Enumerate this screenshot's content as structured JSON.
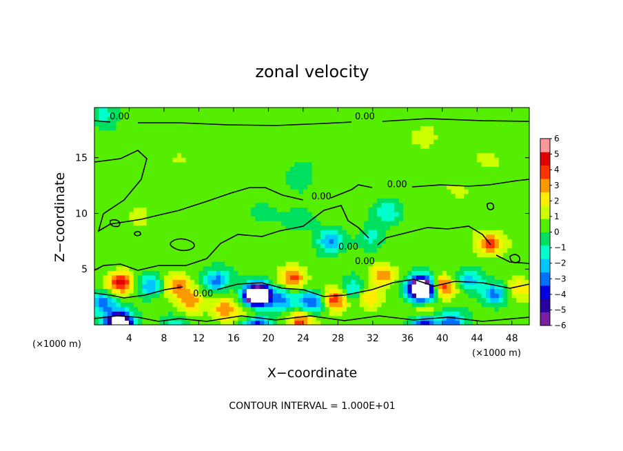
{
  "chart_data": {
    "type": "heatmap",
    "title": "zonal velocity",
    "xlabel": "X−coordinate",
    "ylabel": "Z−coordinate",
    "x_unit_left": "(×1000 m)",
    "x_unit_right": "(×1000 m)",
    "xlim": [
      0,
      50
    ],
    "ylim": [
      0,
      19.5
    ],
    "x_ticks": [
      "4",
      "8",
      "12",
      "16",
      "20",
      "24",
      "28",
      "32",
      "36",
      "40",
      "44",
      "48"
    ],
    "y_ticks": [
      "5",
      "10",
      "15"
    ],
    "colorbar": {
      "ticks": [
        "6",
        "5",
        "4",
        "3",
        "2",
        "1",
        "0",
        "−1",
        "−2",
        "−3",
        "−4",
        "−5",
        "−6"
      ],
      "range": [
        -6,
        6
      ],
      "colors": [
        "#7a1fa2",
        "#2a00a0",
        "#0000e0",
        "#0070ff",
        "#00c8ff",
        "#00ffcc",
        "#00e060",
        "#55ee00",
        "#ccff00",
        "#ffee00",
        "#ff9900",
        "#ff3300",
        "#e00000",
        "#ff9999"
      ]
    },
    "contour_labels": [
      {
        "text": "0.00",
        "x": 2.9,
        "z": 18.7
      },
      {
        "text": "0.00",
        "x": 31.1,
        "z": 18.7
      },
      {
        "text": "0.00",
        "x": 34.8,
        "z": 12.6
      },
      {
        "text": "0.00",
        "x": 26.1,
        "z": 11.5
      },
      {
        "text": "0.00",
        "x": 29.2,
        "z": 7.0
      },
      {
        "text": "0.00",
        "x": 31.1,
        "z": 5.7
      },
      {
        "text": "0.00",
        "x": 12.5,
        "z": 2.8
      }
    ],
    "features": [
      {
        "x": 3.0,
        "z": 3.8,
        "v": 4.5
      },
      {
        "x": 1.0,
        "z": 2.0,
        "v": -3.5
      },
      {
        "x": 6.5,
        "z": 3.5,
        "v": -3.0
      },
      {
        "x": 9.5,
        "z": 3.5,
        "v": 3.5
      },
      {
        "x": 11.0,
        "z": 2.2,
        "v": 3.0
      },
      {
        "x": 14.0,
        "z": 4.0,
        "v": -3.5
      },
      {
        "x": 18.5,
        "z": 2.6,
        "v": -5.0
      },
      {
        "x": 18.8,
        "z": 2.7,
        "v": -6.5
      },
      {
        "x": 15.0,
        "z": 1.5,
        "v": 3.5
      },
      {
        "x": 21.5,
        "z": 2.2,
        "v": -3.5
      },
      {
        "x": 22.8,
        "z": 4.3,
        "v": 3.5
      },
      {
        "x": 25.0,
        "z": 2.0,
        "v": -4.0
      },
      {
        "x": 27.8,
        "z": 2.3,
        "v": 4.5
      },
      {
        "x": 29.7,
        "z": 3.0,
        "v": -3.0
      },
      {
        "x": 27.2,
        "z": 7.5,
        "v": -3.2
      },
      {
        "x": 31.5,
        "z": 2.5,
        "v": 2.5
      },
      {
        "x": 33.2,
        "z": 4.4,
        "v": 3.0
      },
      {
        "x": 37.5,
        "z": 3.5,
        "v": -5.5
      },
      {
        "x": 37.7,
        "z": 3.1,
        "v": -7.0
      },
      {
        "x": 40.0,
        "z": 3.5,
        "v": 4.2
      },
      {
        "x": 43.0,
        "z": 4.0,
        "v": -2.5
      },
      {
        "x": 45.5,
        "z": 7.3,
        "v": 4.0
      },
      {
        "x": 46.0,
        "z": 2.8,
        "v": -3.5
      },
      {
        "x": 48.8,
        "z": 3.2,
        "v": 2.5
      },
      {
        "x": 2.5,
        "z": 0.3,
        "v": -3.5
      },
      {
        "x": 3.0,
        "z": 0.1,
        "v": -6.5
      },
      {
        "x": 9.5,
        "z": 0.2,
        "v": -5.0
      },
      {
        "x": 9.5,
        "z": 0.3,
        "v": 3.5
      },
      {
        "x": 18.5,
        "z": 0.2,
        "v": -6.5
      },
      {
        "x": 18.2,
        "z": 0.9,
        "v": 4.0
      },
      {
        "x": 23.7,
        "z": 0.3,
        "v": 4.0
      },
      {
        "x": 38.0,
        "z": 0.3,
        "v": -6.5
      },
      {
        "x": 38.0,
        "z": 1.0,
        "v": 4.0
      },
      {
        "x": 41.0,
        "z": 0.2,
        "v": -4.0
      },
      {
        "x": 33.8,
        "z": 10.2,
        "v": -2.2
      },
      {
        "x": 23.5,
        "z": 13.5,
        "v": -1.2
      },
      {
        "x": 1.0,
        "z": 19.0,
        "v": -1.8
      },
      {
        "x": 20.0,
        "z": 10.0,
        "v": -0.8
      },
      {
        "x": 24.0,
        "z": 9.5,
        "v": -1.2
      },
      {
        "x": 32.0,
        "z": 8.0,
        "v": -1.5
      },
      {
        "x": 42.0,
        "z": 12.0,
        "v": 0.8
      },
      {
        "x": 10.0,
        "z": 15.0,
        "v": 0.8
      },
      {
        "x": 5.0,
        "z": 10.0,
        "v": 1.0
      },
      {
        "x": 38.0,
        "z": 17.0,
        "v": 1.2
      },
      {
        "x": 45.0,
        "z": 15.0,
        "v": 1.0
      }
    ]
  },
  "footer_text": "CONTOUR INTERVAL = 1.000E+01"
}
